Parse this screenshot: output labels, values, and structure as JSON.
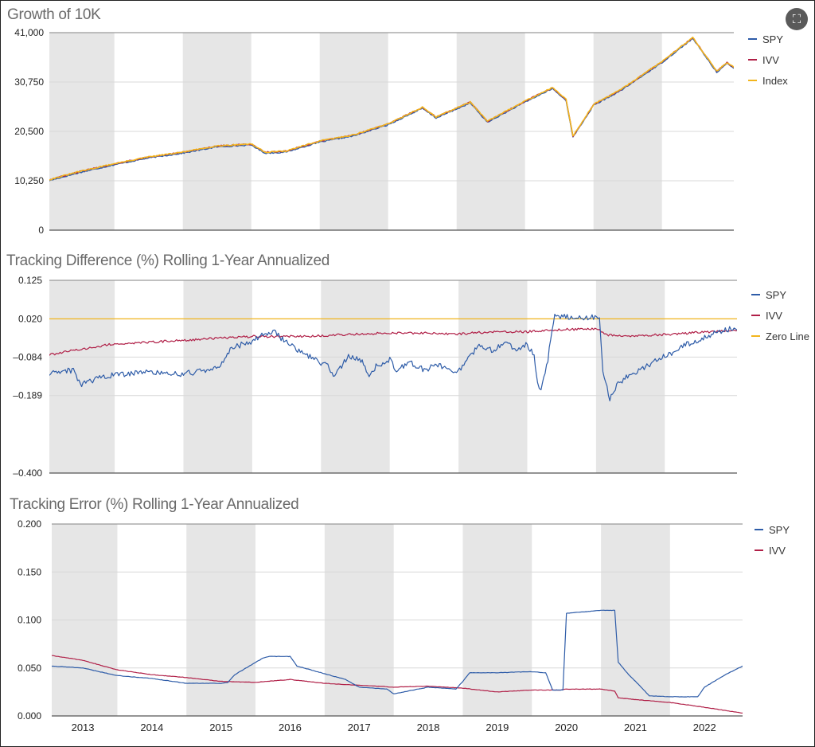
{
  "ui": {
    "expand_icon": "expand-icon",
    "expand_glyph": "⛶"
  },
  "years": [
    "2013",
    "2014",
    "2015",
    "2016",
    "2017",
    "2018",
    "2019",
    "2020",
    "2021",
    "2022"
  ],
  "colors": {
    "spy": "#2e5ca8",
    "ivv": "#b01f47",
    "index": "#f2b51d",
    "zero": "#f2b51d",
    "band": "#e6e6e6",
    "grid": "#d8d8d8"
  },
  "chart_data": [
    {
      "id": "growth",
      "type": "line",
      "title": "Growth of 10K",
      "x_range": [
        2012.55,
        2022.55
      ],
      "ylim": [
        0,
        41000
      ],
      "yticks": [
        0,
        10250,
        20500,
        30750,
        41000
      ],
      "ytick_labels": [
        "0",
        "10,250",
        "20,500",
        "30,750",
        "41,000"
      ],
      "legend": [
        "SPY",
        "IVV",
        "Index"
      ],
      "series": [
        {
          "name": "Index",
          "x": [
            2012.55,
            2013.0,
            2013.5,
            2014.0,
            2014.5,
            2015.0,
            2015.5,
            2015.7,
            2016.0,
            2016.5,
            2017.0,
            2017.5,
            2018.0,
            2018.2,
            2018.7,
            2018.95,
            2019.5,
            2019.9,
            2020.1,
            2020.2,
            2020.5,
            2020.9,
            2021.5,
            2021.95,
            2022.3,
            2022.45,
            2022.55
          ],
          "y": [
            10500,
            12200,
            13800,
            15200,
            16200,
            17500,
            17900,
            16200,
            16400,
            18500,
            19800,
            22100,
            25500,
            23500,
            26600,
            22600,
            26800,
            29600,
            27100,
            19500,
            26100,
            29200,
            35000,
            40000,
            33000,
            34800,
            33800
          ]
        },
        {
          "name": "SPY",
          "x": [
            2012.55,
            2013.0,
            2013.5,
            2014.0,
            2014.5,
            2015.0,
            2015.5,
            2015.7,
            2016.0,
            2016.5,
            2017.0,
            2017.5,
            2018.0,
            2018.2,
            2018.7,
            2018.95,
            2019.5,
            2019.9,
            2020.1,
            2020.2,
            2020.5,
            2020.9,
            2021.5,
            2021.95,
            2022.3,
            2022.45,
            2022.55
          ],
          "y": [
            10450,
            12150,
            13750,
            15150,
            16150,
            17450,
            17850,
            16150,
            16350,
            18450,
            19750,
            22050,
            25450,
            23450,
            26550,
            22550,
            26750,
            29550,
            27050,
            19450,
            26050,
            29150,
            34950,
            39950,
            32950,
            34750,
            33750
          ]
        },
        {
          "name": "IVV",
          "x": [
            2012.55,
            2013.0,
            2013.5,
            2014.0,
            2014.5,
            2015.0,
            2015.5,
            2015.7,
            2016.0,
            2016.5,
            2017.0,
            2017.5,
            2018.0,
            2018.2,
            2018.7,
            2018.95,
            2019.5,
            2019.9,
            2020.1,
            2020.2,
            2020.5,
            2020.9,
            2021.5,
            2021.95,
            2022.3,
            2022.45,
            2022.55
          ],
          "y": [
            10480,
            12180,
            13780,
            15180,
            16180,
            17480,
            17880,
            16180,
            16380,
            18480,
            19780,
            22080,
            25480,
            23480,
            26580,
            22580,
            26780,
            29580,
            27080,
            19480,
            26080,
            29180,
            34980,
            39980,
            32980,
            34780,
            33780
          ]
        }
      ]
    },
    {
      "id": "tracking_difference",
      "type": "line",
      "title": "Tracking Difference (%) Rolling 1-Year Annualized",
      "x_range": [
        2012.55,
        2022.55
      ],
      "ylim": [
        -0.4,
        0.125
      ],
      "yticks": [
        0.125,
        0.02,
        -0.084,
        -0.189,
        -0.4
      ],
      "ytick_labels": [
        "0.125",
        "0.020",
        "–0.084",
        "–0.189",
        "–0.400"
      ],
      "legend": [
        "SPY",
        "IVV",
        "Zero Line"
      ],
      "zero_line": 0.02,
      "series": [
        {
          "name": "SPY",
          "x": [
            2012.55,
            2012.9,
            2013.0,
            2013.3,
            2013.6,
            2014.0,
            2014.3,
            2014.5,
            2014.8,
            2015.0,
            2015.1,
            2015.2,
            2015.5,
            2015.7,
            2015.8,
            2016.0,
            2016.2,
            2016.4,
            2016.6,
            2016.7,
            2016.8,
            2016.9,
            2017.1,
            2017.2,
            2017.3,
            2017.5,
            2017.6,
            2017.8,
            2018.0,
            2018.2,
            2018.4,
            2018.45,
            2018.6,
            2018.8,
            2019.0,
            2019.2,
            2019.3,
            2019.4,
            2019.5,
            2019.6,
            2019.65,
            2019.7,
            2019.8,
            2019.9,
            2020.0,
            2020.2,
            2020.4,
            2020.55,
            2020.6,
            2020.7,
            2020.8,
            2021.0,
            2021.2,
            2021.4,
            2021.6,
            2021.8,
            2022.0,
            2022.2,
            2022.4,
            2022.55
          ],
          "y": [
            -0.13,
            -0.12,
            -0.16,
            -0.14,
            -0.13,
            -0.125,
            -0.13,
            -0.13,
            -0.12,
            -0.115,
            -0.09,
            -0.06,
            -0.04,
            -0.018,
            -0.012,
            -0.045,
            -0.07,
            -0.09,
            -0.11,
            -0.135,
            -0.11,
            -0.08,
            -0.095,
            -0.14,
            -0.11,
            -0.09,
            -0.12,
            -0.1,
            -0.12,
            -0.105,
            -0.115,
            -0.13,
            -0.1,
            -0.05,
            -0.065,
            -0.04,
            -0.06,
            -0.06,
            -0.05,
            -0.08,
            -0.16,
            -0.175,
            -0.09,
            0.033,
            0.026,
            0.023,
            0.024,
            0.027,
            -0.12,
            -0.2,
            -0.16,
            -0.13,
            -0.115,
            -0.09,
            -0.075,
            -0.05,
            -0.04,
            -0.02,
            -0.008,
            -0.01
          ]
        },
        {
          "name": "IVV",
          "x": [
            2012.55,
            2013.0,
            2013.5,
            2014.0,
            2014.5,
            2015.0,
            2015.5,
            2016.0,
            2016.5,
            2017.0,
            2017.5,
            2018.0,
            2018.5,
            2019.0,
            2019.5,
            2020.0,
            2020.4,
            2020.55,
            2020.6,
            2020.7,
            2021.0,
            2021.5,
            2022.0,
            2022.55
          ],
          "y": [
            -0.078,
            -0.063,
            -0.048,
            -0.044,
            -0.038,
            -0.033,
            -0.028,
            -0.028,
            -0.026,
            -0.022,
            -0.018,
            -0.019,
            -0.021,
            -0.015,
            -0.015,
            -0.009,
            -0.008,
            -0.008,
            -0.018,
            -0.025,
            -0.026,
            -0.023,
            -0.017,
            -0.012
          ]
        }
      ]
    },
    {
      "id": "tracking_error",
      "type": "line",
      "title": "Tracking Error (%) Rolling 1-Year Annualized",
      "x_range": [
        2012.55,
        2022.55
      ],
      "ylim": [
        0,
        0.2
      ],
      "yticks": [
        0.0,
        0.05,
        0.1,
        0.15,
        0.2
      ],
      "ytick_labels": [
        "0.000",
        "0.050",
        "0.100",
        "0.150",
        "0.200"
      ],
      "legend": [
        "SPY",
        "IVV"
      ],
      "series": [
        {
          "name": "SPY",
          "x": [
            2012.55,
            2013.0,
            2013.5,
            2014.0,
            2014.5,
            2015.0,
            2015.1,
            2015.2,
            2015.6,
            2015.7,
            2016.0,
            2016.1,
            2016.5,
            2016.8,
            2017.0,
            2017.4,
            2017.5,
            2018.0,
            2018.4,
            2018.5,
            2018.6,
            2019.0,
            2019.4,
            2019.5,
            2019.7,
            2019.8,
            2019.95,
            2020.0,
            2020.5,
            2020.7,
            2020.75,
            2020.9,
            2021.0,
            2021.2,
            2021.5,
            2021.9,
            2022.0,
            2022.3,
            2022.55
          ],
          "y": [
            0.052,
            0.05,
            0.042,
            0.039,
            0.034,
            0.034,
            0.035,
            0.043,
            0.06,
            0.062,
            0.062,
            0.052,
            0.044,
            0.038,
            0.03,
            0.028,
            0.023,
            0.03,
            0.028,
            0.036,
            0.045,
            0.045,
            0.046,
            0.046,
            0.045,
            0.027,
            0.027,
            0.107,
            0.11,
            0.11,
            0.056,
            0.043,
            0.036,
            0.021,
            0.02,
            0.02,
            0.03,
            0.043,
            0.052
          ]
        },
        {
          "name": "IVV",
          "x": [
            2012.55,
            2013.0,
            2013.5,
            2014.0,
            2014.5,
            2015.0,
            2015.5,
            2016.0,
            2016.5,
            2017.0,
            2017.5,
            2018.0,
            2018.5,
            2019.0,
            2019.5,
            2019.9,
            2020.0,
            2020.5,
            2020.7,
            2020.75,
            2021.0,
            2021.5,
            2022.0,
            2022.55
          ],
          "y": [
            0.063,
            0.058,
            0.048,
            0.043,
            0.04,
            0.036,
            0.035,
            0.038,
            0.034,
            0.032,
            0.03,
            0.031,
            0.029,
            0.025,
            0.027,
            0.027,
            0.028,
            0.028,
            0.026,
            0.019,
            0.017,
            0.014,
            0.009,
            0.003
          ]
        }
      ]
    }
  ]
}
